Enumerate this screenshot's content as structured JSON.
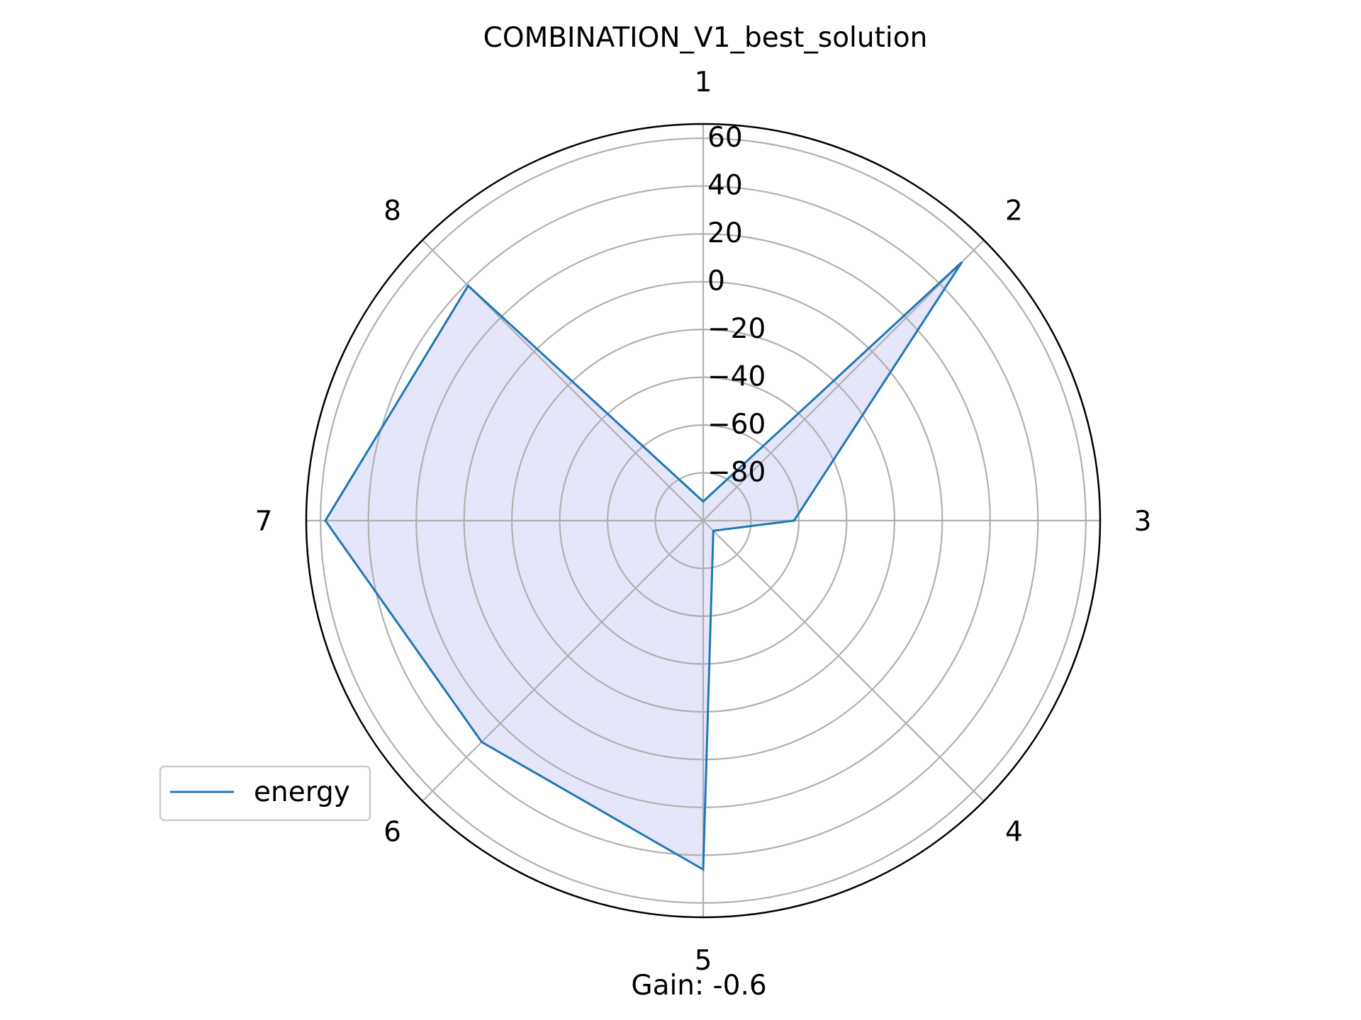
{
  "chart_data": {
    "type": "radar",
    "title": "COMBINATION_V1_best_solution",
    "categories": [
      "1",
      "2",
      "3",
      "4",
      "5",
      "6",
      "7",
      "8"
    ],
    "radial_ticks": [
      "−80",
      "−60",
      "−40",
      "−20",
      "0",
      "20",
      "40",
      "60"
    ],
    "rlim": [
      -100,
      66
    ],
    "series": [
      {
        "name": "energy",
        "values": [
          -92,
          53,
          -62,
          -94,
          46,
          31,
          58,
          39
        ]
      }
    ],
    "legend": {
      "position": "lower-left",
      "entries": [
        "energy"
      ]
    },
    "grid": true,
    "annotation": "Gain: -0.6",
    "colors": {
      "line": "#1f77b4",
      "fill": "#e6e6fa",
      "grid": "#b0b0b0",
      "frame": "#000000"
    }
  }
}
